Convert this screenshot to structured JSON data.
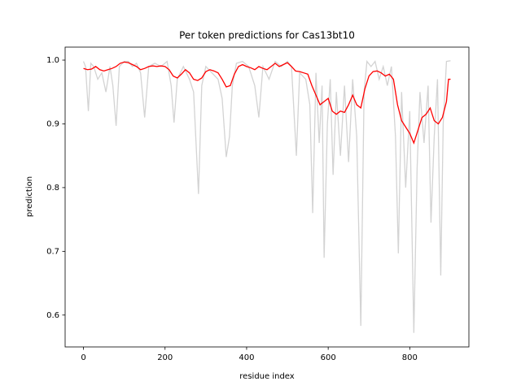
{
  "chart_data": {
    "type": "line",
    "title": "Per token predictions for Cas13bt10",
    "x_label": "residue index",
    "y_label": "prediction",
    "xlim": [
      -45,
      945
    ],
    "ylim": [
      0.55,
      1.0204
    ],
    "xticks": [
      0,
      200,
      400,
      600,
      800
    ],
    "yticks": [
      0.6,
      0.7,
      0.8,
      0.9,
      {
        "value": 1,
        "label": "1.0"
      }
    ],
    "series": [
      {
        "color": "#d3d3d3",
        "x": [
          0,
          5,
          12,
          18,
          25,
          35,
          45,
          55,
          65,
          72,
          80,
          88,
          100,
          110,
          120,
          130,
          140,
          150,
          160,
          175,
          190,
          205,
          215,
          222,
          230,
          245,
          260,
          270,
          282,
          290,
          300,
          315,
          330,
          340,
          350,
          358,
          365,
          375,
          390,
          405,
          420,
          430,
          440,
          455,
          470,
          485,
          500,
          510,
          522,
          530,
          545,
          555,
          562,
          570,
          578,
          585,
          590,
          598,
          605,
          612,
          620,
          630,
          640,
          650,
          660,
          670,
          680,
          688,
          695,
          705,
          715,
          725,
          735,
          745,
          755,
          765,
          772,
          780,
          790,
          800,
          810,
          818,
          825,
          835,
          845,
          852,
          860,
          868,
          876,
          882,
          890,
          900
        ],
        "values": [
          0.998,
          0.99,
          0.92,
          0.995,
          0.99,
          0.97,
          0.98,
          0.95,
          0.99,
          0.96,
          0.897,
          0.99,
          0.998,
          0.998,
          0.99,
          0.995,
          0.98,
          0.91,
          0.99,
          0.995,
          0.99,
          0.998,
          0.96,
          0.902,
          0.97,
          0.99,
          0.97,
          0.95,
          0.79,
          0.96,
          0.99,
          0.98,
          0.97,
          0.94,
          0.848,
          0.88,
          0.96,
          0.995,
          0.998,
          0.99,
          0.96,
          0.91,
          0.99,
          0.97,
          0.998,
          0.99,
          0.998,
          0.99,
          0.85,
          0.98,
          0.97,
          0.93,
          0.76,
          0.98,
          0.87,
          0.96,
          0.69,
          0.9,
          0.97,
          0.82,
          0.95,
          0.85,
          0.96,
          0.84,
          0.97,
          0.88,
          0.583,
          0.95,
          0.998,
          0.99,
          0.998,
          0.97,
          0.99,
          0.96,
          0.99,
          0.88,
          0.697,
          0.95,
          0.8,
          0.92,
          0.572,
          0.83,
          0.95,
          0.87,
          0.96,
          0.745,
          0.88,
          0.97,
          0.662,
          0.9,
          0.998,
          0.999
        ]
      },
      {
        "color": "#ff0000",
        "x": [
          0,
          10,
          20,
          30,
          40,
          50,
          60,
          70,
          80,
          90,
          100,
          110,
          120,
          130,
          140,
          150,
          160,
          170,
          180,
          190,
          200,
          210,
          220,
          230,
          240,
          250,
          260,
          270,
          280,
          290,
          300,
          310,
          320,
          330,
          340,
          350,
          360,
          370,
          380,
          390,
          400,
          410,
          420,
          430,
          440,
          450,
          460,
          470,
          480,
          490,
          500,
          510,
          520,
          530,
          540,
          550,
          560,
          570,
          580,
          590,
          600,
          610,
          620,
          630,
          640,
          650,
          660,
          670,
          680,
          690,
          700,
          710,
          720,
          730,
          740,
          750,
          760,
          770,
          780,
          790,
          800,
          810,
          820,
          830,
          840,
          850,
          860,
          870,
          880,
          890,
          895,
          900
        ],
        "values": [
          0.987,
          0.985,
          0.986,
          0.99,
          0.985,
          0.983,
          0.985,
          0.987,
          0.99,
          0.995,
          0.997,
          0.996,
          0.993,
          0.99,
          0.985,
          0.987,
          0.99,
          0.991,
          0.99,
          0.991,
          0.99,
          0.985,
          0.975,
          0.972,
          0.978,
          0.985,
          0.98,
          0.97,
          0.968,
          0.972,
          0.982,
          0.985,
          0.983,
          0.98,
          0.97,
          0.958,
          0.96,
          0.978,
          0.99,
          0.993,
          0.99,
          0.988,
          0.985,
          0.99,
          0.987,
          0.985,
          0.99,
          0.995,
          0.99,
          0.993,
          0.996,
          0.99,
          0.983,
          0.982,
          0.98,
          0.978,
          0.96,
          0.945,
          0.93,
          0.935,
          0.94,
          0.92,
          0.915,
          0.92,
          0.918,
          0.93,
          0.945,
          0.93,
          0.925,
          0.955,
          0.975,
          0.982,
          0.983,
          0.98,
          0.975,
          0.978,
          0.97,
          0.93,
          0.905,
          0.895,
          0.885,
          0.87,
          0.89,
          0.91,
          0.915,
          0.925,
          0.905,
          0.9,
          0.91,
          0.935,
          0.97,
          0.97
        ]
      }
    ]
  }
}
